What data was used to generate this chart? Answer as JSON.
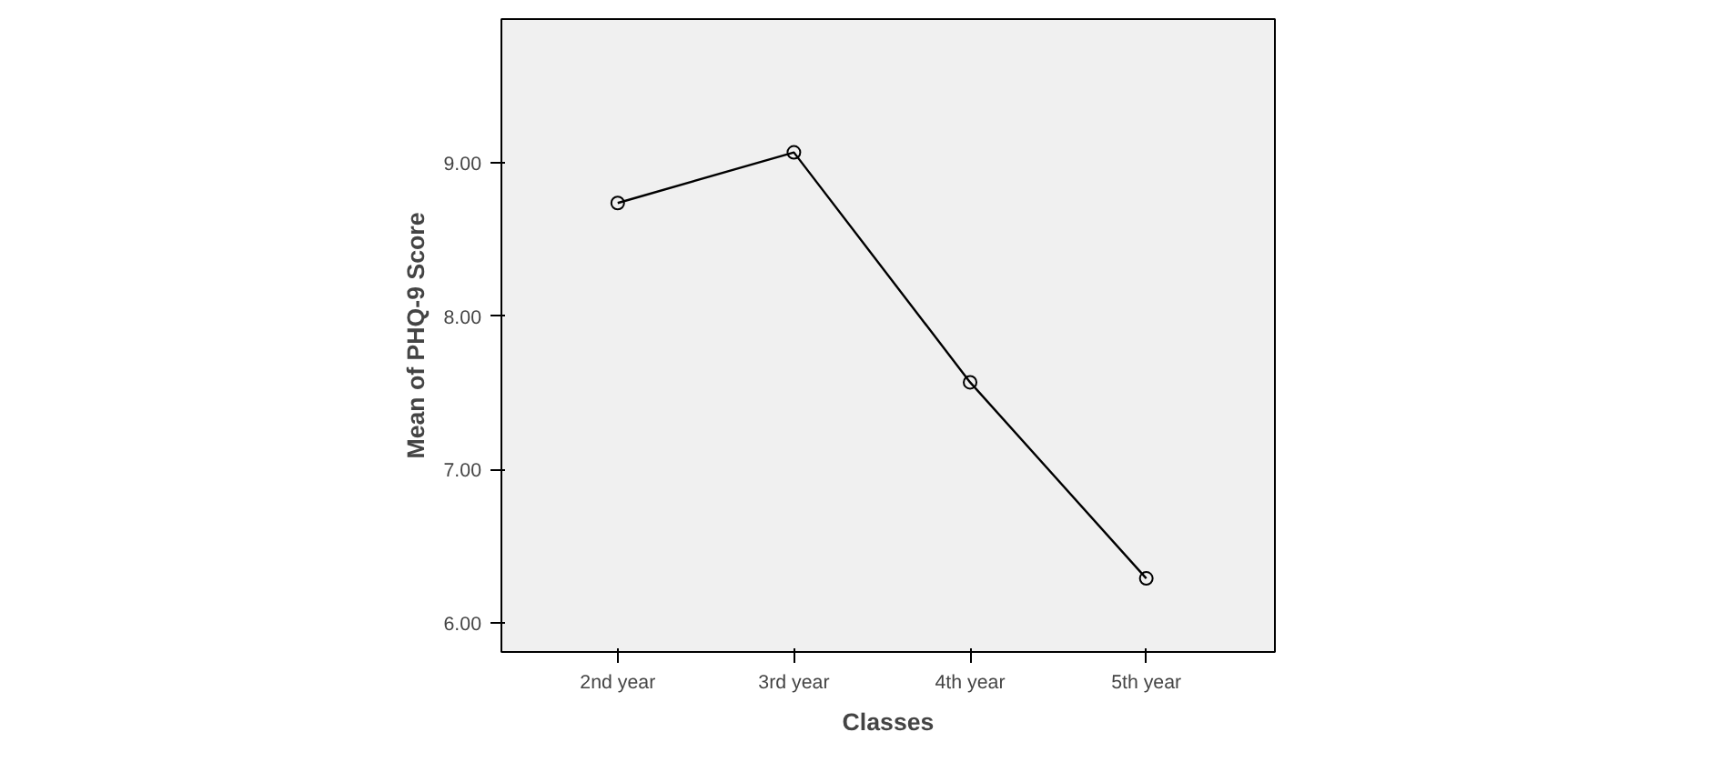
{
  "chart_data": {
    "type": "line",
    "xlabel": "Classes",
    "ylabel": "Mean of PHQ-9 Score",
    "categories": [
      "2nd year",
      "3rd year",
      "4th year",
      "5th year"
    ],
    "series": [
      {
        "color": "#000000",
        "values": [
          8.74,
          9.07,
          7.57,
          6.29
        ]
      }
    ],
    "ylim": [
      5.81,
      9.94
    ],
    "yticks": [
      {
        "value": 6,
        "label": "6.00"
      },
      {
        "value": 7,
        "label": "7.00"
      },
      {
        "value": 8,
        "label": "8.00"
      },
      {
        "value": 9,
        "label": "9.00"
      }
    ],
    "marker": "circle",
    "line_style": "solid",
    "grid": false
  }
}
